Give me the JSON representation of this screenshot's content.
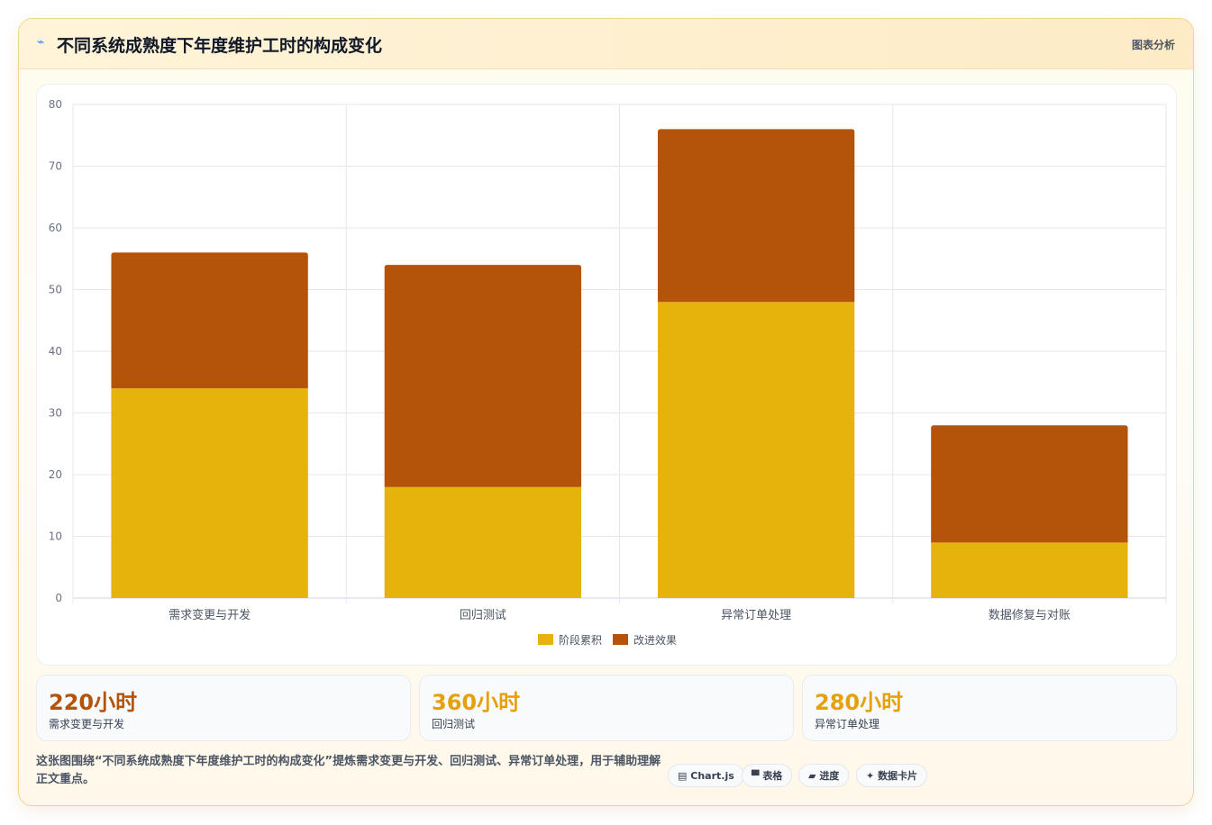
{
  "header": {
    "icon": "chart-line-icon",
    "title": "不同系统成熟度下年度维护工时的构成变化",
    "right_label": "图表分析"
  },
  "chart_data": {
    "type": "bar",
    "stacked": true,
    "categories": [
      "需求变更与开发",
      "回归测试",
      "异常订单处理",
      "数据修复与对账"
    ],
    "series": [
      {
        "name": "阶段累积",
        "values": [
          34,
          18,
          48,
          9
        ],
        "color": "#e6b20c"
      },
      {
        "name": "改进效果",
        "values": [
          22,
          36,
          28,
          19
        ],
        "color": "#b4530a"
      }
    ],
    "ylim": [
      0,
      80
    ],
    "yticks": [
      0,
      10,
      20,
      30,
      40,
      50,
      60,
      70,
      80
    ],
    "grid": true,
    "legend": "bottom"
  },
  "stats": [
    {
      "value": "220小时",
      "label": "需求变更与开发",
      "color": "#b4530a"
    },
    {
      "value": "360小时",
      "label": "回归测试",
      "color": "#e6a00c"
    },
    {
      "value": "280小时",
      "label": "异常订单处理",
      "color": "#e6a00c"
    }
  ],
  "description": "这张图围绕“不同系统成熟度下年度维护工时的构成变化”提炼需求变更与开发、回归测试、异常订单处理，用于辅助理解正文重点。",
  "tags": [
    {
      "icon": "chart-icon",
      "glyph": "▤",
      "label": "Chart.js"
    },
    {
      "icon": "table-icon",
      "glyph": "▀",
      "label": "表格"
    },
    {
      "icon": "progress-icon",
      "glyph": "▰",
      "label": "进度"
    },
    {
      "icon": "sparkle-icon",
      "glyph": "✦",
      "label": "数据卡片"
    }
  ]
}
